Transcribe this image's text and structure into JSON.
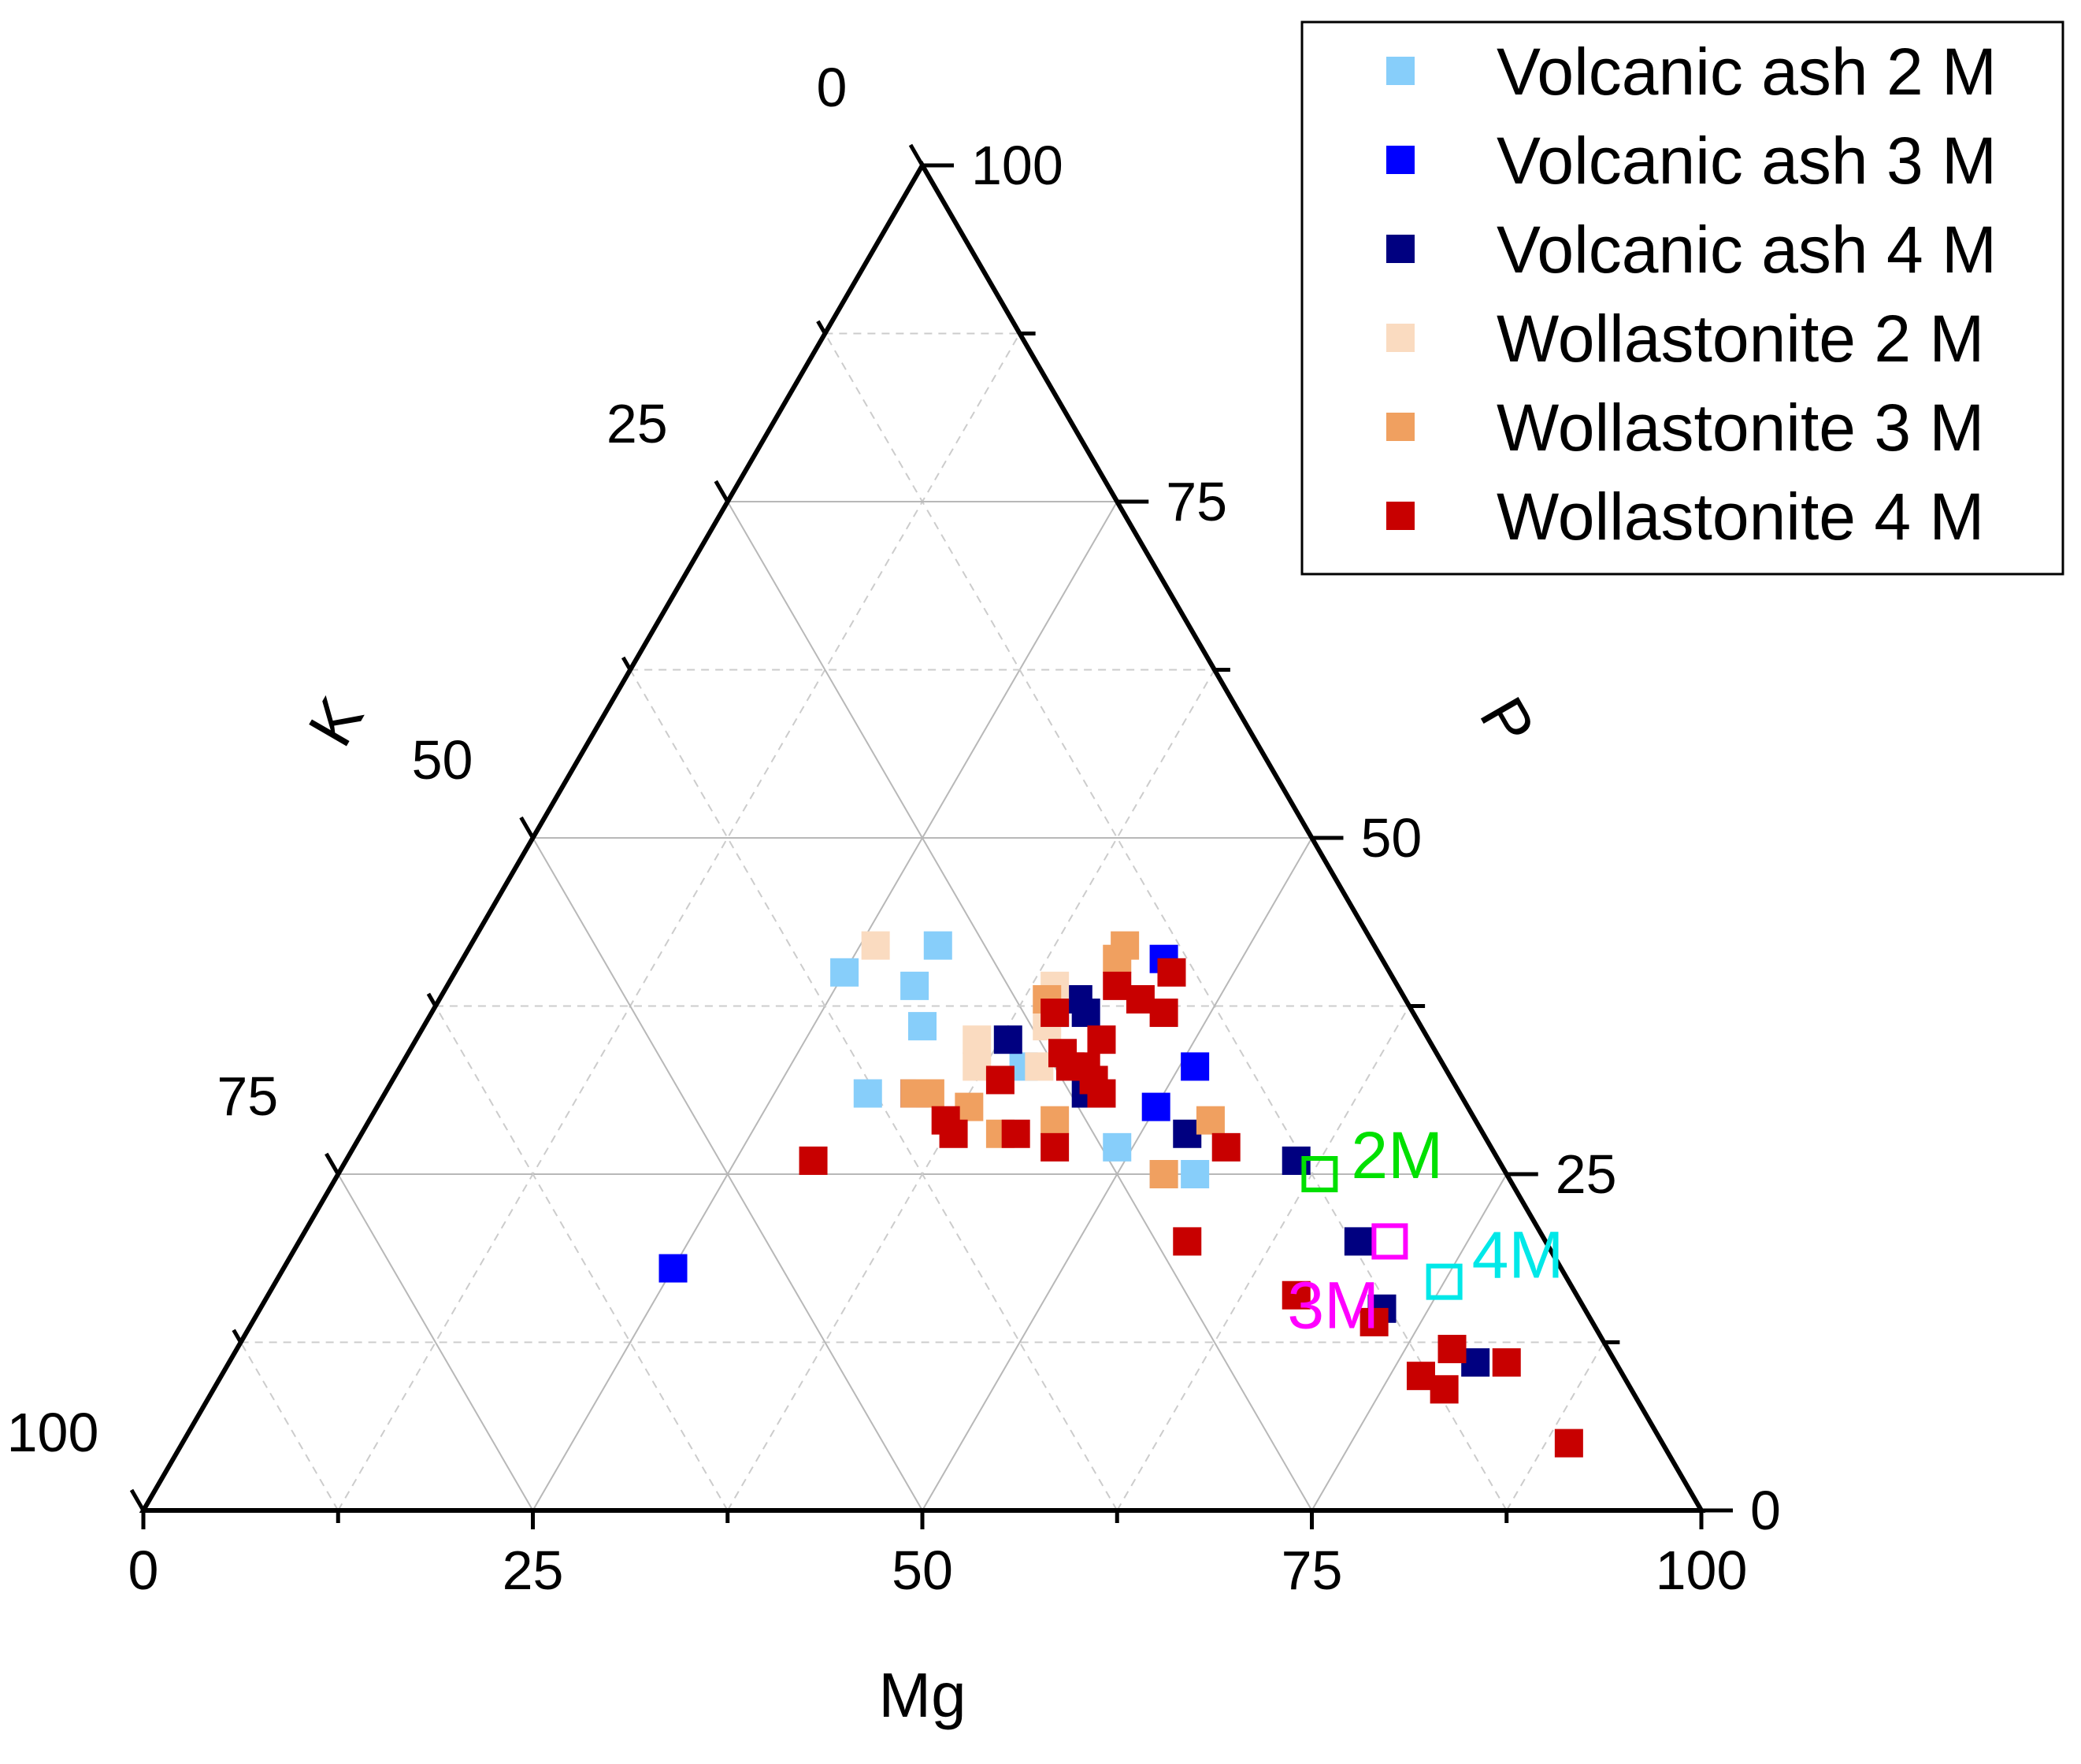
{
  "chart_data": {
    "type": "scatter-ternary",
    "title": "",
    "axes": {
      "bottom": {
        "label": "Mg",
        "range": [
          0,
          100
        ],
        "ticks": [
          "0",
          "25",
          "50",
          "75",
          "100"
        ]
      },
      "left": {
        "label": "K",
        "range": [
          0,
          100
        ],
        "ticks": [
          "0",
          "25",
          "50",
          "75",
          "100"
        ]
      },
      "right": {
        "label": "P",
        "range": [
          0,
          100
        ],
        "ticks": [
          "0",
          "25",
          "50",
          "75",
          "100"
        ]
      }
    },
    "grid": true,
    "legend_position": "top-right",
    "series": [
      {
        "name": "Volcanic ash 2 M",
        "color": "#87CEFA",
        "points": [
          [
            25,
            40
          ],
          [
            30,
            42
          ],
          [
            30,
            39
          ],
          [
            32,
            36
          ],
          [
            31,
            31
          ],
          [
            49,
            27
          ],
          [
            53,
            25
          ],
          [
            55,
            25
          ],
          [
            40,
            33
          ]
        ]
      },
      {
        "name": "Volcanic ash 3 M",
        "color": "#0000FF",
        "points": [
          [
            25,
            18
          ],
          [
            45,
            41
          ],
          [
            40,
            37
          ],
          [
            51,
            33
          ],
          [
            34,
            31
          ],
          [
            50,
            30
          ]
        ]
      },
      {
        "name": "Volcanic ash 4 M",
        "color": "#000080",
        "points": [
          [
            41,
            38
          ],
          [
            42,
            37
          ],
          [
            45,
            31
          ],
          [
            53,
            28
          ],
          [
            61,
            26
          ],
          [
            68,
            20
          ],
          [
            72,
            15
          ],
          [
            80,
            11
          ],
          [
            38,
            35
          ]
        ]
      },
      {
        "name": "Wollastonite 2 M",
        "color": "#FADBC0",
        "points": [
          [
            26,
            42
          ],
          [
            39,
            39
          ],
          [
            36,
            35
          ],
          [
            37,
            33
          ],
          [
            41,
            33
          ],
          [
            40,
            36
          ]
        ]
      },
      {
        "name": "Wollastonite 3 M",
        "color": "#F0A060",
        "points": [
          [
            42,
            42
          ],
          [
            42,
            41
          ],
          [
            34,
            31
          ],
          [
            38,
            30
          ],
          [
            41,
            28
          ],
          [
            44,
            29
          ],
          [
            54,
            29
          ],
          [
            53,
            25
          ],
          [
            39,
            38
          ],
          [
            35,
            31
          ]
        ]
      },
      {
        "name": "Wollastonite 4 M",
        "color": "#C80000",
        "points": [
          [
            47,
            37
          ],
          [
            46,
            40
          ],
          [
            45,
            38
          ],
          [
            43,
            39
          ],
          [
            40,
            37
          ],
          [
            42,
            34
          ],
          [
            43,
            33
          ],
          [
            44,
            33
          ],
          [
            45,
            32
          ],
          [
            46,
            31
          ],
          [
            37,
            29
          ],
          [
            38,
            28
          ],
          [
            42,
            28
          ],
          [
            45,
            27
          ],
          [
            30,
            26
          ],
          [
            56,
            27
          ],
          [
            57,
            20
          ],
          [
            66,
            16
          ],
          [
            72,
            14
          ],
          [
            78,
            12
          ],
          [
            77,
            10
          ],
          [
            79,
            9
          ],
          [
            82,
            11
          ],
          [
            89,
            5
          ],
          [
            44,
            35
          ],
          [
            39,
            32
          ]
        ]
      }
    ],
    "reference_points": [
      {
        "label": "2M",
        "color": "#00E000",
        "mg": 63,
        "k": 12,
        "p": 25
      },
      {
        "label": "3M",
        "color": "#FF00FF",
        "mg": 70,
        "k": 10,
        "p": 20
      },
      {
        "label": "4M",
        "color": "#00E8E8",
        "mg": 75,
        "k": 8,
        "p": 17
      }
    ]
  }
}
